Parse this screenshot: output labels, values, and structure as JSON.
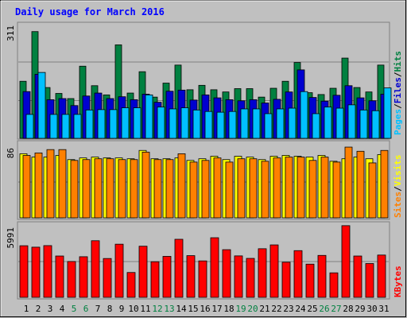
{
  "chart_data": {
    "type": "bar",
    "title": "Daily usage for March 2016",
    "categories": [
      "1",
      "2",
      "3",
      "4",
      "5",
      "6",
      "7",
      "8",
      "9",
      "10",
      "11",
      "12",
      "13",
      "14",
      "15",
      "16",
      "17",
      "18",
      "19",
      "20",
      "21",
      "22",
      "23",
      "24",
      "25",
      "26",
      "27",
      "28",
      "29",
      "30",
      "31"
    ],
    "weekend_categories": [
      "5",
      "6",
      "12",
      "13",
      "19",
      "20",
      "26",
      "27"
    ],
    "panels": [
      {
        "id": "hits-files-pages",
        "ymax_label": "311",
        "ylim": [
          0,
          311
        ],
        "legend": [
          "Pages",
          "/",
          "Files",
          "/",
          "Hits"
        ],
        "series": [
          {
            "name": "Hits",
            "color": "#008040",
            "values": [
              155,
              290,
              138,
              122,
              108,
              196,
              143,
              118,
              254,
              123,
              181,
              112,
              150,
              199,
              132,
              144,
              132,
              126,
              135,
              135,
              112,
              136,
              155,
              206,
              124,
              119,
              136,
              218,
              138,
              126,
              199
            ]
          },
          {
            "name": "Files",
            "color": "#0000d0",
            "values": [
              127,
              174,
              105,
              108,
              89,
              115,
              123,
              108,
              113,
              105,
              120,
              98,
              128,
              131,
              104,
              118,
              110,
              105,
              102,
              105,
              96,
              106,
              126,
              186,
              111,
              101,
              117,
              143,
              110,
              102,
              120
            ]
          },
          {
            "name": "Pages",
            "color": "#00c0ff",
            "values": [
              65,
              179,
              65,
              65,
              65,
              77,
              78,
              78,
              83,
              83,
              118,
              85,
              80,
              83,
              77,
              73,
              71,
              73,
              80,
              80,
              67,
              80,
              82,
              127,
              67,
              85,
              82,
              91,
              77,
              75,
              137
            ]
          }
        ]
      },
      {
        "id": "visits-sites",
        "ymax_label": "86",
        "ylim": [
          0,
          86
        ],
        "legend": [
          "Sites",
          "/",
          "Visits"
        ],
        "series": [
          {
            "name": "Visits",
            "color": "#ffff00",
            "values": [
              77,
              73,
              73,
              75,
              70,
              72,
              73,
              72,
              72,
              71,
              81,
              71,
              71,
              72,
              69,
              71,
              74,
              70,
              74,
              73,
              70,
              74,
              75,
              74,
              73,
              75,
              68,
              71,
              73,
              71,
              76
            ]
          },
          {
            "name": "Sites",
            "color": "#ff8000",
            "values": [
              75,
              78,
              82,
              82,
              69,
              70,
              71,
              71,
              70,
              70,
              79,
              70,
              70,
              77,
              67,
              69,
              72,
              67,
              71,
              71,
              68,
              72,
              73,
              73,
              69,
              73,
              67,
              85,
              80,
              66,
              81
            ]
          }
        ]
      },
      {
        "id": "kbytes",
        "ymax_label": "5991",
        "ylim": [
          0,
          5991
        ],
        "legend": [
          "KBytes"
        ],
        "series": [
          {
            "name": "KBytes",
            "color": "#ff0000",
            "values": [
              4320,
              4200,
              4330,
              3460,
              3000,
              3400,
              4740,
              3250,
              4450,
              2080,
              4280,
              2980,
              3430,
              4860,
              3490,
              3050,
              4990,
              3990,
              3470,
              3260,
              4070,
              4390,
              2940,
              3910,
              2780,
              3510,
              2050,
              6000,
              3460,
              2830,
              3540
            ]
          }
        ]
      }
    ]
  }
}
